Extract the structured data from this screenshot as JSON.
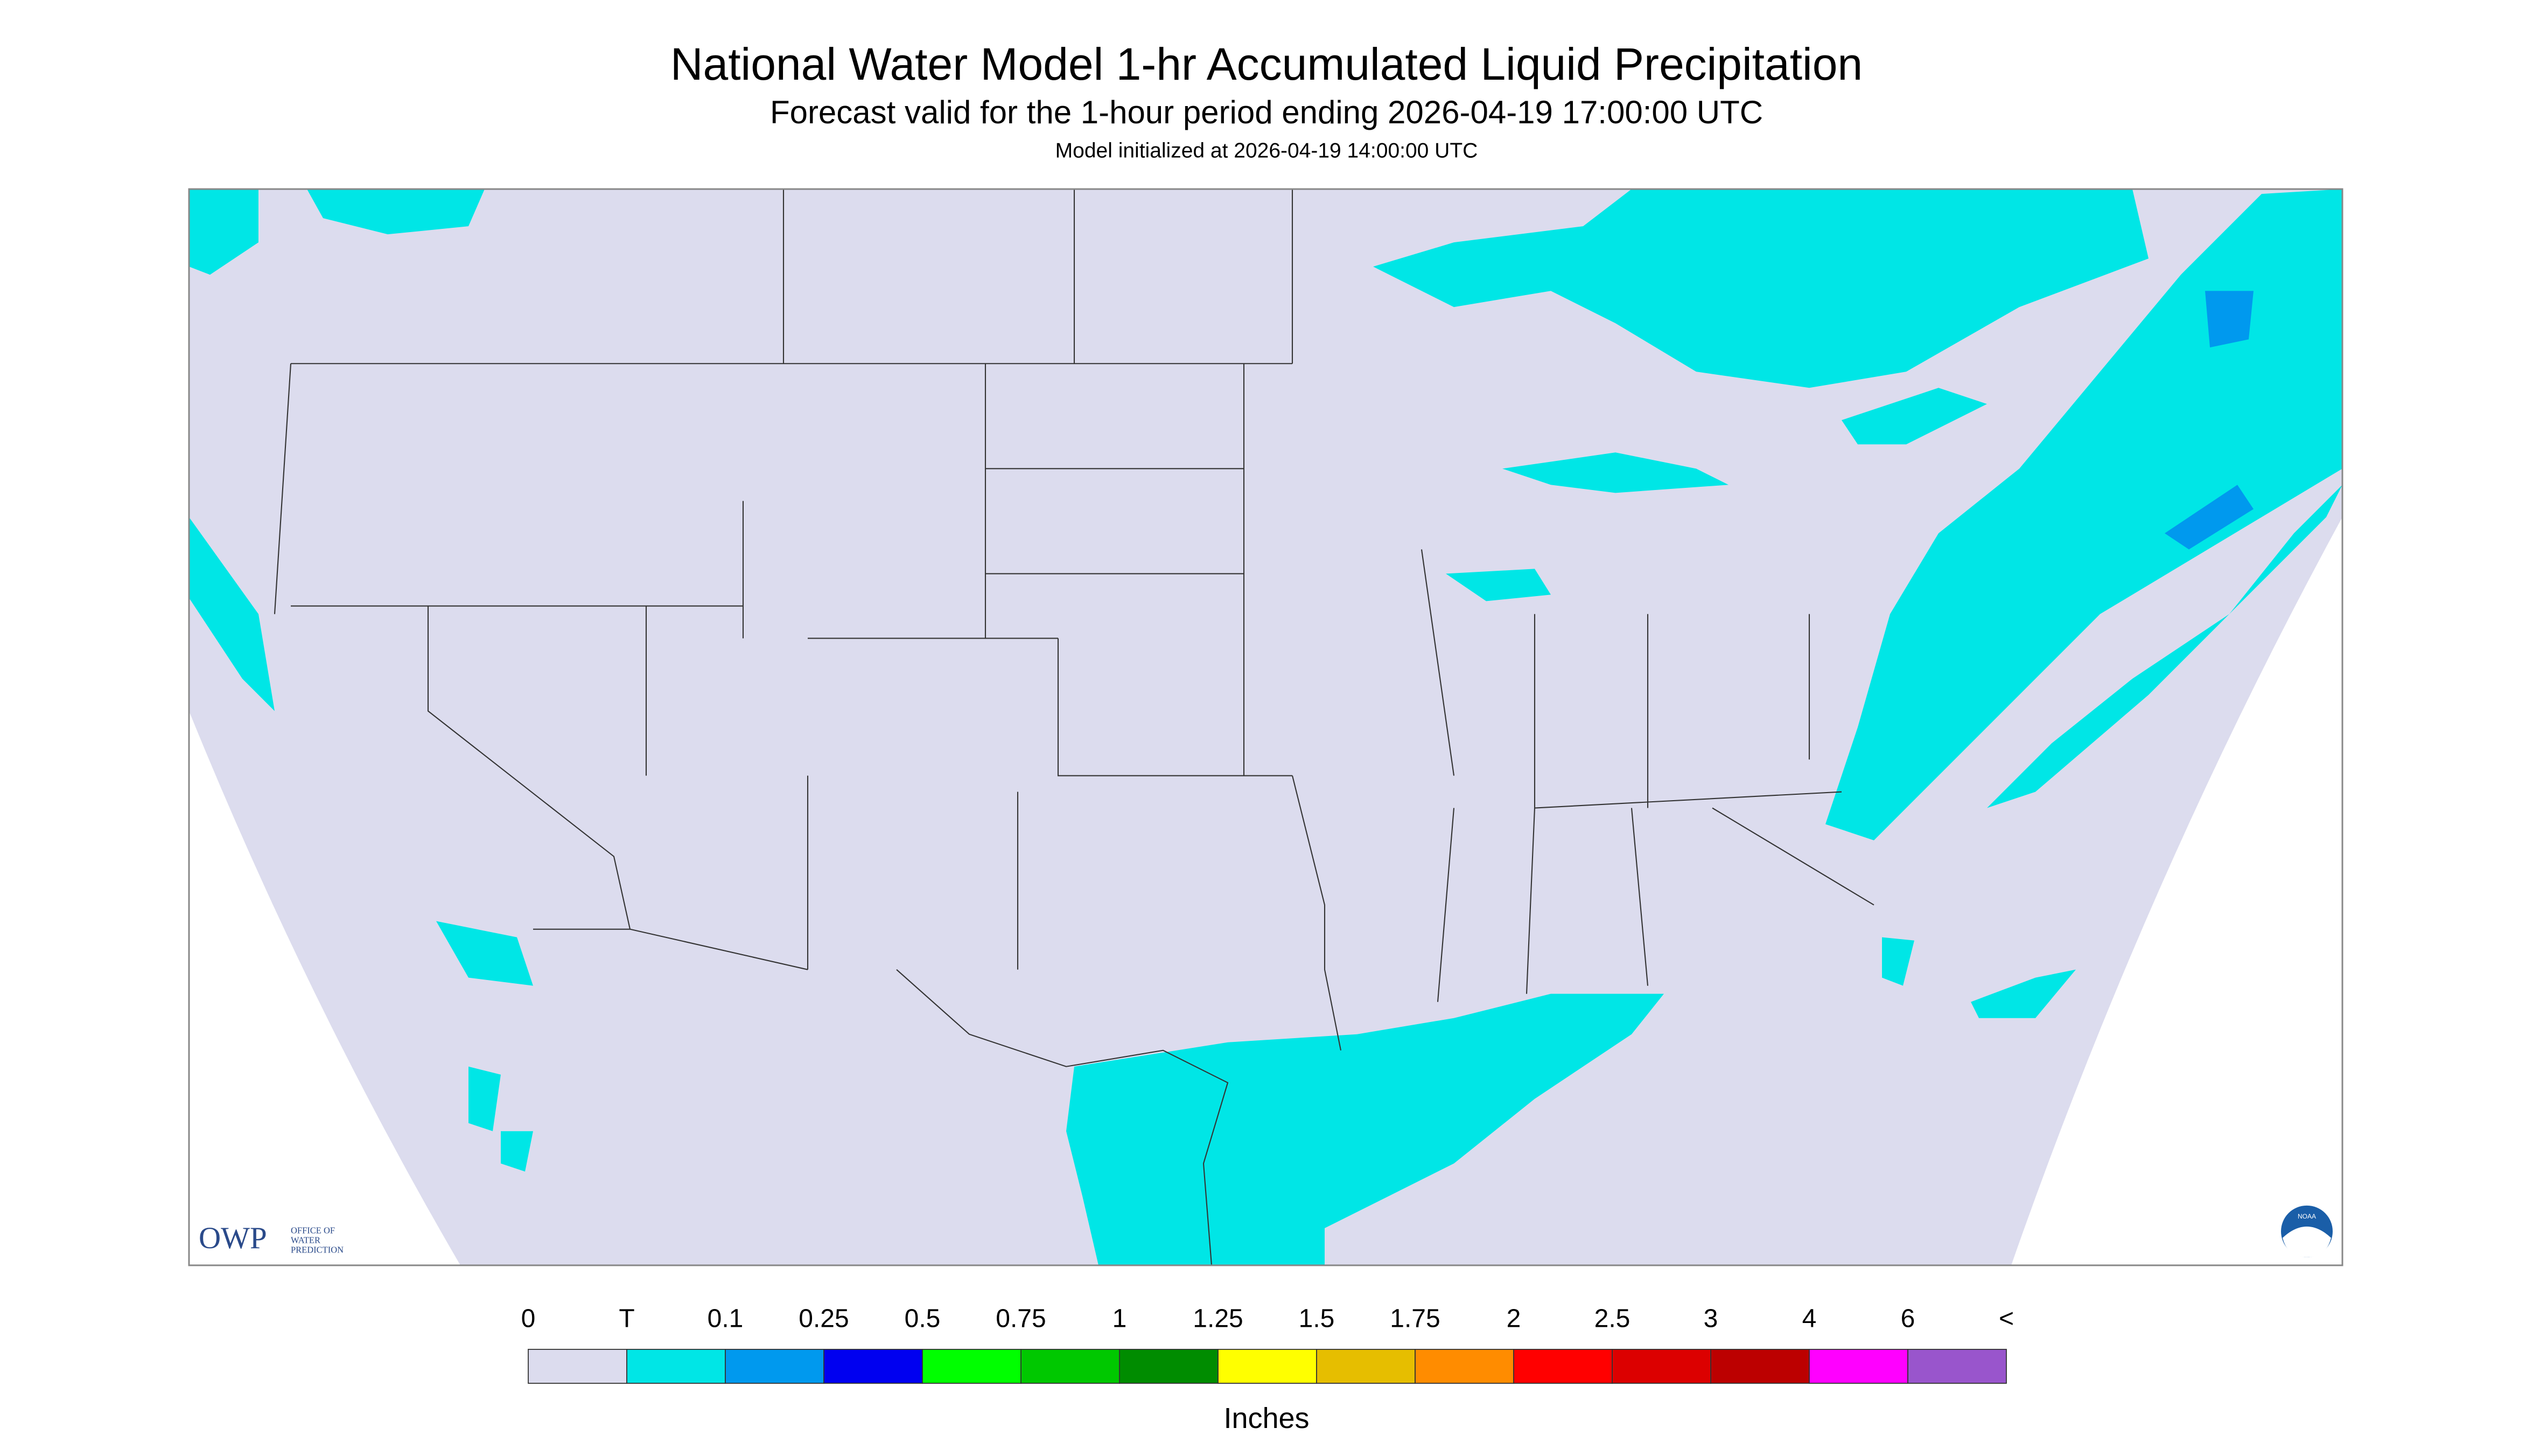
{
  "header": {
    "title": "National Water Model 1-hr Accumulated Liquid Precipitation",
    "subtitle": "Forecast valid for the 1-hour period ending 2026-04-19 17:00:00 UTC",
    "init": "Model initialized at 2026-04-19 14:00:00 UTC"
  },
  "logos": {
    "owp": "OWP",
    "owp_lines": [
      "OFFICE OF",
      "WATER",
      "PREDICTION"
    ],
    "noaa": "NOAA"
  },
  "legend": {
    "labels": [
      "0",
      "T",
      "0.1",
      "0.25",
      "0.5",
      "0.75",
      "1",
      "1.25",
      "1.5",
      "1.75",
      "2",
      "2.5",
      "3",
      "4",
      "6",
      "<"
    ],
    "colors": [
      "#dcdcee",
      "#00e6e6",
      "#0099ee",
      "#0000f0",
      "#00ff00",
      "#00c800",
      "#008c00",
      "#ffff00",
      "#e6be00",
      "#ff8c00",
      "#ff0000",
      "#dc0000",
      "#bc0000",
      "#ff00ff",
      "#9955cc"
    ],
    "units": "Inches"
  }
}
